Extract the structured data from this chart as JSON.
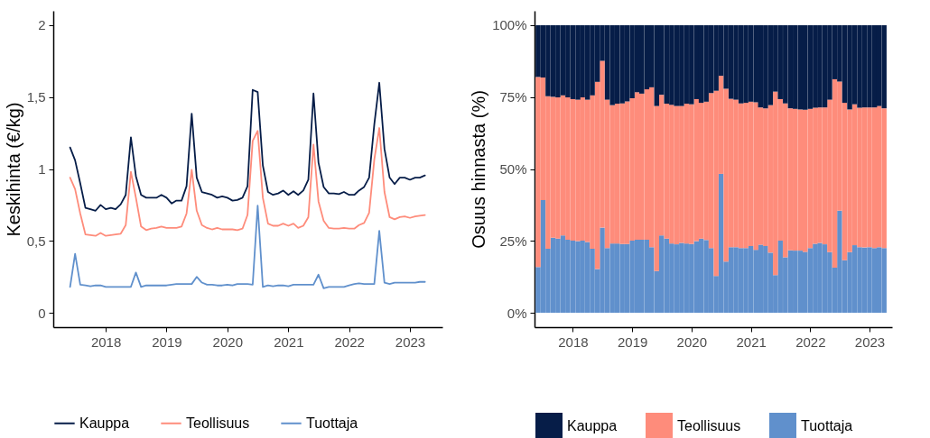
{
  "chart_data": [
    {
      "type": "line",
      "ylabel": "Keskihinta (€/kg)",
      "legend": "bottom",
      "grid": false,
      "x": [
        "2017-06",
        "2017-07",
        "2017-08",
        "2017-09",
        "2017-10",
        "2017-11",
        "2017-12",
        "2018-01",
        "2018-02",
        "2018-03",
        "2018-04",
        "2018-05",
        "2018-06",
        "2018-07",
        "2018-08",
        "2018-09",
        "2018-10",
        "2018-11",
        "2018-12",
        "2019-01",
        "2019-02",
        "2019-03",
        "2019-04",
        "2019-05",
        "2019-06",
        "2019-07",
        "2019-08",
        "2019-09",
        "2019-10",
        "2019-11",
        "2019-12",
        "2020-01",
        "2020-02",
        "2020-03",
        "2020-04",
        "2020-05",
        "2020-06",
        "2020-07",
        "2020-08",
        "2020-09",
        "2020-10",
        "2020-11",
        "2020-12",
        "2021-01",
        "2021-02",
        "2021-03",
        "2021-04",
        "2021-05",
        "2021-06",
        "2021-07",
        "2021-08",
        "2021-09",
        "2021-10",
        "2021-11",
        "2021-12",
        "2022-01",
        "2022-02",
        "2022-03",
        "2022-04",
        "2022-05",
        "2022-06",
        "2022-07",
        "2022-08",
        "2022-09",
        "2022-10",
        "2022-11",
        "2022-12",
        "2023-01",
        "2023-02",
        "2023-03",
        "2023-04"
      ],
      "xlim": [
        "2017-02-20",
        "2023-07-15"
      ],
      "xticks": [
        "2018",
        "2019",
        "2020",
        "2021",
        "2022",
        "2023"
      ],
      "ylim": [
        -0.1,
        2.1
      ],
      "yticks": [
        0,
        {
          "value": 0.5,
          "label": "0,5"
        },
        1,
        {
          "value": 1.5,
          "label": "1,5"
        },
        2
      ],
      "series": [
        {
          "name": "Kauppa",
          "color": "#061d48",
          "values": [
            1.15,
            1.06,
            0.9,
            0.73,
            0.72,
            0.71,
            0.75,
            0.72,
            0.73,
            0.72,
            0.755,
            0.82,
            1.22,
            0.95,
            0.82,
            0.8,
            0.8,
            0.8,
            0.82,
            0.8,
            0.76,
            0.78,
            0.78,
            0.88,
            1.385,
            0.94,
            0.84,
            0.83,
            0.82,
            0.8,
            0.81,
            0.8,
            0.78,
            0.785,
            0.8,
            0.88,
            1.55,
            1.535,
            1.025,
            0.84,
            0.82,
            0.83,
            0.85,
            0.82,
            0.845,
            0.82,
            0.85,
            0.925,
            1.525,
            1.045,
            0.875,
            0.83,
            0.83,
            0.825,
            0.84,
            0.82,
            0.82,
            0.85,
            0.875,
            0.94,
            1.31,
            1.6,
            1.14,
            0.94,
            0.895,
            0.94,
            0.94,
            0.925,
            0.94,
            0.94,
            0.955
          ]
        },
        {
          "name": "Teollisuus",
          "color": "#fe8c7b",
          "values": [
            0.94,
            0.86,
            0.69,
            0.545,
            0.54,
            0.535,
            0.555,
            0.535,
            0.54,
            0.545,
            0.55,
            0.61,
            0.98,
            0.8,
            0.6,
            0.575,
            0.585,
            0.59,
            0.6,
            0.59,
            0.59,
            0.59,
            0.6,
            0.69,
            0.995,
            0.71,
            0.61,
            0.59,
            0.58,
            0.59,
            0.58,
            0.58,
            0.58,
            0.575,
            0.585,
            0.68,
            1.195,
            1.265,
            0.8,
            0.62,
            0.605,
            0.605,
            0.62,
            0.605,
            0.62,
            0.59,
            0.605,
            0.665,
            1.17,
            0.775,
            0.64,
            0.59,
            0.585,
            0.585,
            0.59,
            0.585,
            0.585,
            0.61,
            0.625,
            0.695,
            1.065,
            1.285,
            0.84,
            0.665,
            0.65,
            0.665,
            0.67,
            0.66,
            0.67,
            0.675,
            0.68
          ]
        },
        {
          "name": "Tuottaja",
          "color": "#6090cc",
          "values": [
            0.18,
            0.41,
            0.195,
            0.19,
            0.185,
            0.19,
            0.19,
            0.18,
            0.18,
            0.18,
            0.18,
            0.18,
            0.18,
            0.28,
            0.18,
            0.19,
            0.19,
            0.19,
            0.19,
            0.19,
            0.195,
            0.2,
            0.2,
            0.2,
            0.2,
            0.25,
            0.21,
            0.195,
            0.195,
            0.19,
            0.19,
            0.195,
            0.19,
            0.2,
            0.2,
            0.2,
            0.195,
            0.745,
            0.18,
            0.19,
            0.185,
            0.19,
            0.19,
            0.185,
            0.195,
            0.195,
            0.195,
            0.195,
            0.195,
            0.265,
            0.17,
            0.18,
            0.18,
            0.18,
            0.18,
            0.19,
            0.2,
            0.205,
            0.2,
            0.2,
            0.2,
            0.57,
            0.21,
            0.2,
            0.21,
            0.21,
            0.21,
            0.21,
            0.21,
            0.215,
            0.215
          ]
        }
      ]
    },
    {
      "type": "bar",
      "stacked": true,
      "ylabel": "Osuus hinnasta (%)",
      "legend": "bottom",
      "grid": false,
      "x": [
        "2017-06",
        "2017-07",
        "2017-08",
        "2017-09",
        "2017-10",
        "2017-11",
        "2017-12",
        "2018-01",
        "2018-02",
        "2018-03",
        "2018-04",
        "2018-05",
        "2018-06",
        "2018-07",
        "2018-08",
        "2018-09",
        "2018-10",
        "2018-11",
        "2018-12",
        "2019-01",
        "2019-02",
        "2019-03",
        "2019-04",
        "2019-05",
        "2019-06",
        "2019-07",
        "2019-08",
        "2019-09",
        "2019-10",
        "2019-11",
        "2019-12",
        "2020-01",
        "2020-02",
        "2020-03",
        "2020-04",
        "2020-05",
        "2020-06",
        "2020-07",
        "2020-08",
        "2020-09",
        "2020-10",
        "2020-11",
        "2020-12",
        "2021-01",
        "2021-02",
        "2021-03",
        "2021-04",
        "2021-05",
        "2021-06",
        "2021-07",
        "2021-08",
        "2021-09",
        "2021-10",
        "2021-11",
        "2021-12",
        "2022-01",
        "2022-02",
        "2022-03",
        "2022-04",
        "2022-05",
        "2022-06",
        "2022-07",
        "2022-08",
        "2022-09",
        "2022-10",
        "2022-11",
        "2022-12",
        "2023-01",
        "2023-02",
        "2023-03",
        "2023-04"
      ],
      "xlim": [
        "2017-05-10",
        "2023-05-20"
      ],
      "xticks": [
        "2018",
        "2019",
        "2020",
        "2021",
        "2022",
        "2023"
      ],
      "ylim": [
        -5,
        105
      ],
      "yticks": [
        {
          "value": 0,
          "label": "0%"
        },
        {
          "value": 25,
          "label": "25%"
        },
        {
          "value": 50,
          "label": "50%"
        },
        {
          "value": 75,
          "label": "75%"
        },
        {
          "value": 100,
          "label": "100%"
        }
      ],
      "series": [
        {
          "name": "Tuottaja",
          "color": "#6090cc",
          "values": [
            15.9,
            39.2,
            22.3,
            26.1,
            25.8,
            26.9,
            25.4,
            25.1,
            24.9,
            25.1,
            24.6,
            22.3,
            15.2,
            29.6,
            22.5,
            24.1,
            24.1,
            23.9,
            23.9,
            25.1,
            25.4,
            25.4,
            25.4,
            22.8,
            14.5,
            26.9,
            25.8,
            24.1,
            23.8,
            24.3,
            24.1,
            23.9,
            24.9,
            25.8,
            25.3,
            22.5,
            12.8,
            48.3,
            17.8,
            22.8,
            22.8,
            22.5,
            22.5,
            23.2,
            21.9,
            23.7,
            23.2,
            20.9,
            13.1,
            25.1,
            19.3,
            21.7,
            21.6,
            21.6,
            21.2,
            22.5,
            24.0,
            24.3,
            23.8,
            21.1,
            15.7,
            35.5,
            18.3,
            21.1,
            23.5,
            22.8,
            22.7,
            22.8,
            22.5,
            22.8,
            22.5
          ]
        },
        {
          "name": "Teollisuus",
          "color": "#fe8c7b",
          "values": [
            66.1,
            42.6,
            53.0,
            49.0,
            49.1,
            48.7,
            49.5,
            49.2,
            49.2,
            49.8,
            49.5,
            53.3,
            65.1,
            58.0,
            51.6,
            48.1,
            48.6,
            48.9,
            49.6,
            49.5,
            51.3,
            50.8,
            52.3,
            55.6,
            57.4,
            48.9,
            46.9,
            48.2,
            48.1,
            47.6,
            48.6,
            48.6,
            49.4,
            47.2,
            48.1,
            53.9,
            64.4,
            34.1,
            60.1,
            51.6,
            51.3,
            50.3,
            50.5,
            50.2,
            51.3,
            47.7,
            47.9,
            51.3,
            63.8,
            49.2,
            53.5,
            49.4,
            49.3,
            49.1,
            49.4,
            48.4,
            47.3,
            47.1,
            47.6,
            53.0,
            65.5,
            44.9,
            54.7,
            49.6,
            49.0,
            48.5,
            48.7,
            48.6,
            48.9,
            49.1,
            48.6
          ]
        },
        {
          "name": "Kauppa",
          "color": "#061d48",
          "values": [
            18.0,
            18.2,
            24.7,
            24.9,
            25.1,
            24.4,
            25.1,
            25.7,
            25.9,
            25.1,
            25.9,
            24.4,
            19.7,
            12.4,
            25.9,
            27.8,
            27.3,
            27.2,
            26.5,
            25.4,
            23.3,
            23.8,
            22.3,
            21.6,
            28.1,
            24.2,
            27.3,
            27.7,
            28.1,
            28.1,
            27.3,
            27.5,
            25.7,
            27.0,
            26.6,
            23.6,
            22.8,
            17.6,
            22.1,
            25.6,
            25.9,
            27.2,
            27.0,
            26.6,
            26.8,
            28.6,
            28.9,
            27.8,
            23.1,
            25.7,
            27.2,
            28.9,
            29.1,
            29.3,
            29.4,
            29.1,
            28.7,
            28.6,
            28.6,
            25.9,
            18.8,
            19.6,
            27.0,
            29.3,
            27.5,
            28.7,
            28.6,
            28.6,
            28.6,
            28.1,
            28.9
          ]
        }
      ]
    }
  ]
}
